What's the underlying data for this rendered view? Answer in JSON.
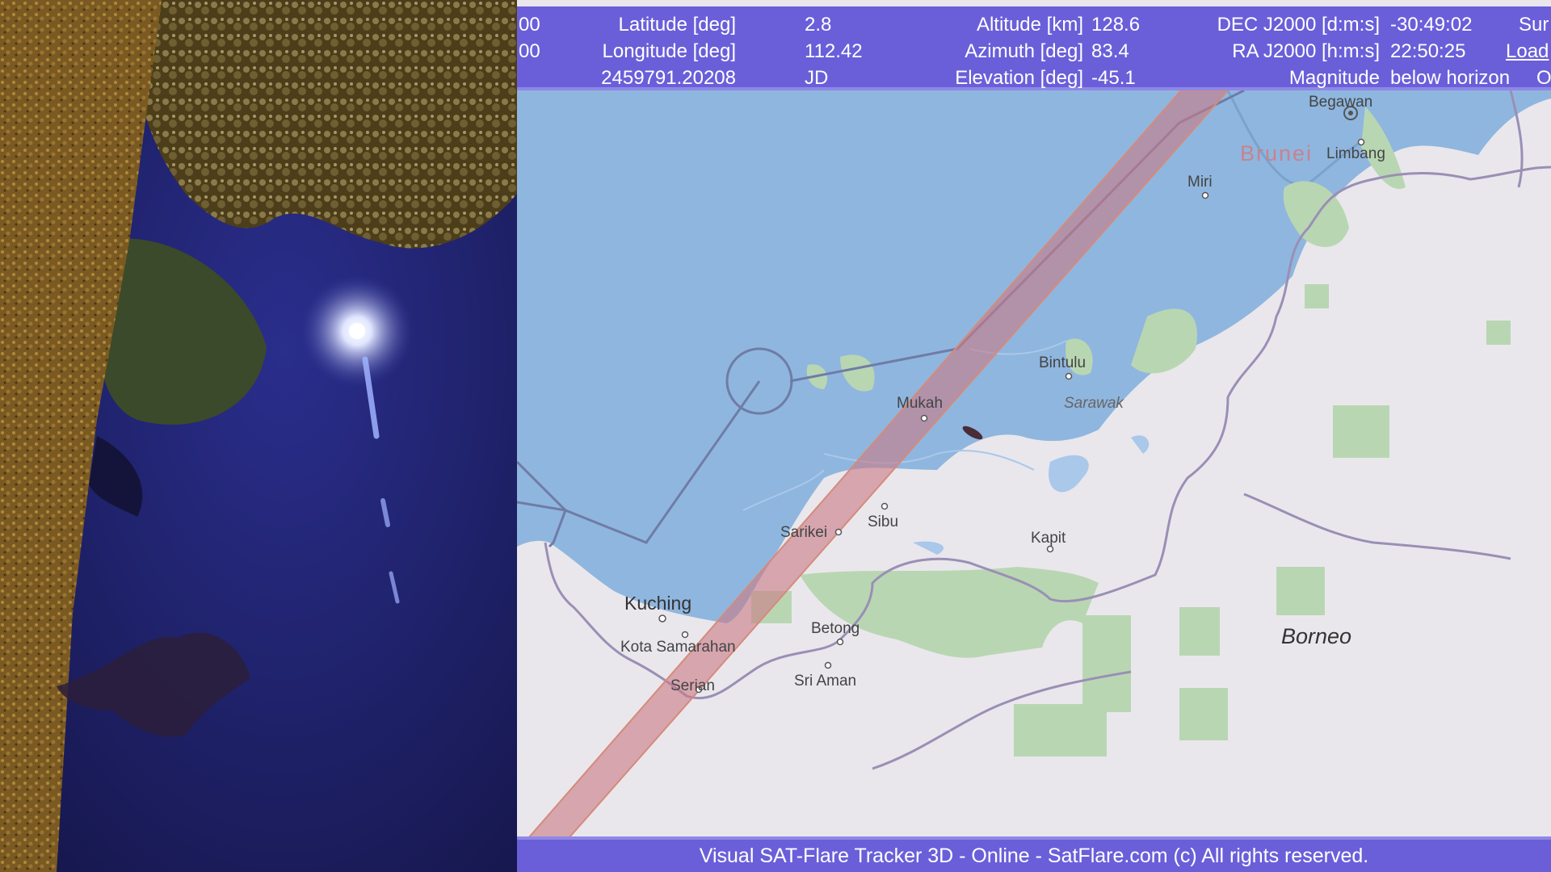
{
  "header": {
    "row1": {
      "left_fragment": "00",
      "lat_label": "Latitude [deg]",
      "lat_value": "2.8",
      "alt_label": "Altitude [km]",
      "alt_value": "128.6",
      "dec_label": "DEC J2000 [d:m:s]",
      "dec_value": "-30:49:02",
      "right_fragment": "Sur"
    },
    "row2": {
      "left_fragment": "00",
      "lon_label": "Longitude [deg]",
      "lon_value": "112.42",
      "az_label": "Azimuth [deg]",
      "az_value": "83.4",
      "ra_label": "RA J2000 [h:m:s]",
      "ra_value": "22:50:25",
      "right_fragment": "Load"
    },
    "row3": {
      "jd_value": "2459791.20208",
      "jd_label": "JD",
      "el_label": "Elevation [deg]",
      "el_value": "-45.1",
      "mag_label": "Magnitude",
      "mag_value": "below horizon",
      "right_fragment": "O"
    }
  },
  "map": {
    "labels": {
      "begawan": "Begawan",
      "brunei": "Brunei",
      "miri": "Miri",
      "limbang": "Limbang",
      "bintulu": "Bintulu",
      "sarawak": "Sarawak",
      "mukah": "Mukah",
      "sibu": "Sibu",
      "sarikei": "Sarikei",
      "kapit": "Kapit",
      "kuching": "Kuching",
      "kota_samarahan": "Kota Samarahan",
      "betong": "Betong",
      "serian": "Serian",
      "sri_aman": "Sri Aman",
      "borneo": "Borneo"
    },
    "colors": {
      "sea": "#8fb6de",
      "land": "#e9e7ec",
      "forest": "#b9d6b3",
      "track": "#c97a86",
      "header_bg": "#6a5fd9"
    }
  },
  "footer": {
    "text": "Visual SAT-Flare Tracker 3D - Online - SatFlare.com (c) All rights reserved."
  },
  "icons": [
    "satellite-track-band",
    "satellite-marker-icon",
    "capital-marker-icon"
  ]
}
